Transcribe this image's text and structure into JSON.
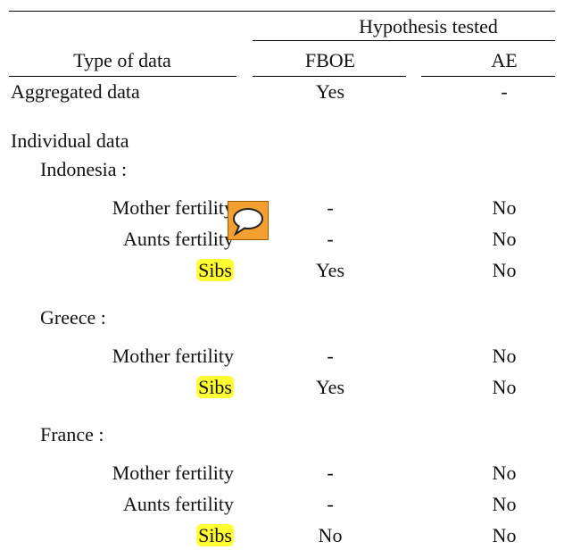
{
  "table": {
    "group_header": "Hypothesis tested",
    "columns": [
      "Type of data",
      "FBOE",
      "AE"
    ],
    "aggregated": {
      "label": "Aggregated data",
      "fboe": "Yes",
      "ae": "-"
    },
    "individual": {
      "label": "Individual data",
      "countries": [
        {
          "name": "Indonesia :",
          "rows": [
            {
              "label": "Mother fertility",
              "fboe": "-",
              "ae": "No"
            },
            {
              "label": "Aunts fertility",
              "fboe": "-",
              "ae": "No"
            },
            {
              "label": "Sibs",
              "fboe": "Yes",
              "ae": "No",
              "highlight": true
            }
          ]
        },
        {
          "name": "Greece :",
          "rows": [
            {
              "label": "Mother fertility",
              "fboe": "-",
              "ae": "No"
            },
            {
              "label": "Sibs",
              "fboe": "Yes",
              "ae": "No",
              "highlight": true
            }
          ]
        },
        {
          "name": "France :",
          "rows": [
            {
              "label": "Mother fertility",
              "fboe": "-",
              "ae": "No"
            },
            {
              "label": "Aunts fertility",
              "fboe": "-",
              "ae": "No"
            },
            {
              "label": "Sibs",
              "fboe": "No",
              "ae": "No",
              "highlight": true
            }
          ]
        }
      ]
    }
  }
}
